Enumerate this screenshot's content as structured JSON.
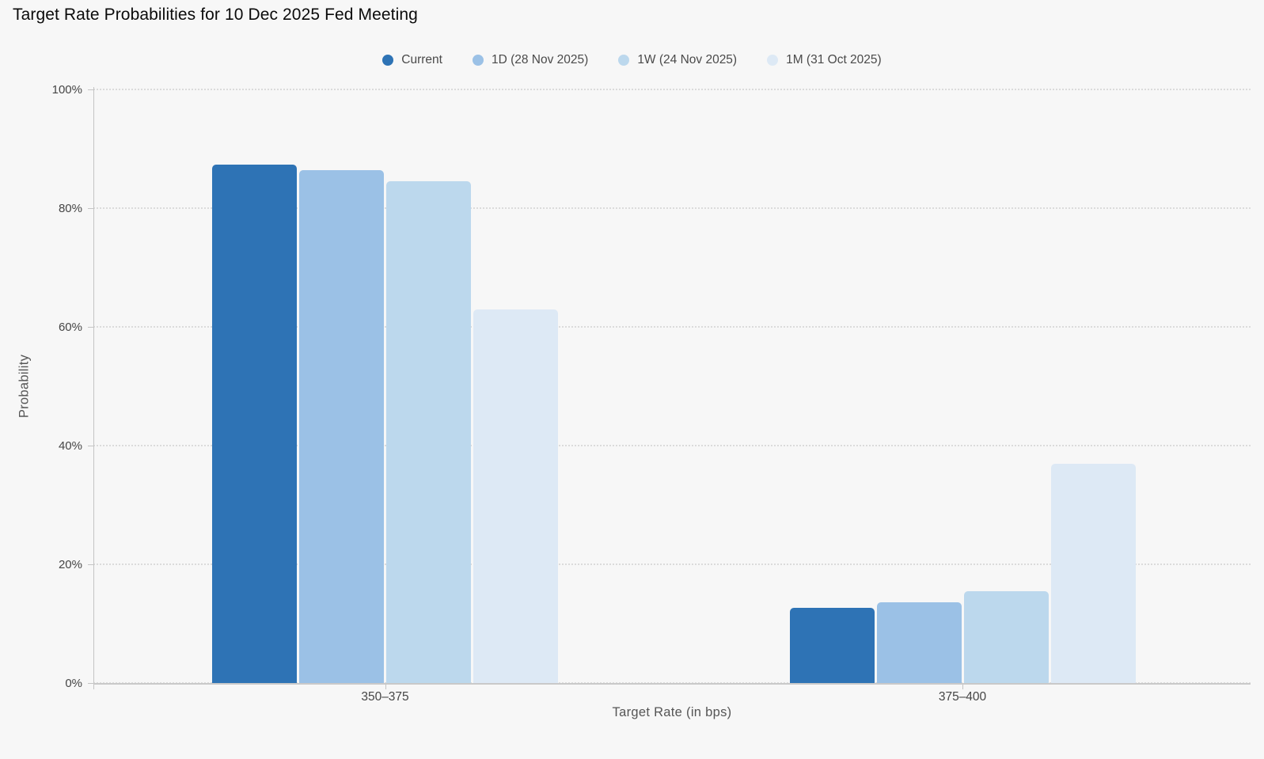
{
  "title": "Target Rate Probabilities for 10 Dec 2025 Fed Meeting",
  "colors": {
    "background": "#F7F7F7",
    "title_text": "#0B0B0B",
    "legend_text": "#4A4A4A",
    "tick_text": "#454545",
    "axis_title_text": "#555555",
    "gridline": "#DBDBDB",
    "axis_line": "#C4C4C4",
    "series_current": "#2E73B5",
    "series_1d": "#9BC1E6",
    "series_1w": "#BCD8ED",
    "series_1m": "#DDE9F5"
  },
  "chart_data": {
    "type": "bar",
    "title": "Target Rate Probabilities for 10 Dec 2025 Fed Meeting",
    "xlabel": "Target Rate (in bps)",
    "ylabel": "Probability",
    "categories": [
      "350–375",
      "375–400"
    ],
    "series": [
      {
        "name": "Current",
        "short": "current",
        "color": "#2E73B5",
        "values": [
          87.3,
          12.7
        ]
      },
      {
        "name": "1D (28 Nov 2025)",
        "short": "1d",
        "color": "#9BC1E6",
        "values": [
          86.4,
          13.6
        ]
      },
      {
        "name": "1W (24 Nov 2025)",
        "short": "1w",
        "color": "#BCD8ED",
        "values": [
          84.5,
          15.5
        ]
      },
      {
        "name": "1M (31 Oct 2025)",
        "short": "1m",
        "color": "#DDE9F5",
        "values": [
          63.0,
          37.0
        ]
      }
    ],
    "ylim": [
      0,
      100
    ],
    "ytick_labels": [
      "0%",
      "20%",
      "40%",
      "60%",
      "80%",
      "100%"
    ],
    "ytick_values": [
      0,
      20,
      40,
      60,
      80,
      100
    ],
    "grid": "horizontal-dotted",
    "legend_position": "top-center",
    "bar_unit": "percent probability"
  }
}
